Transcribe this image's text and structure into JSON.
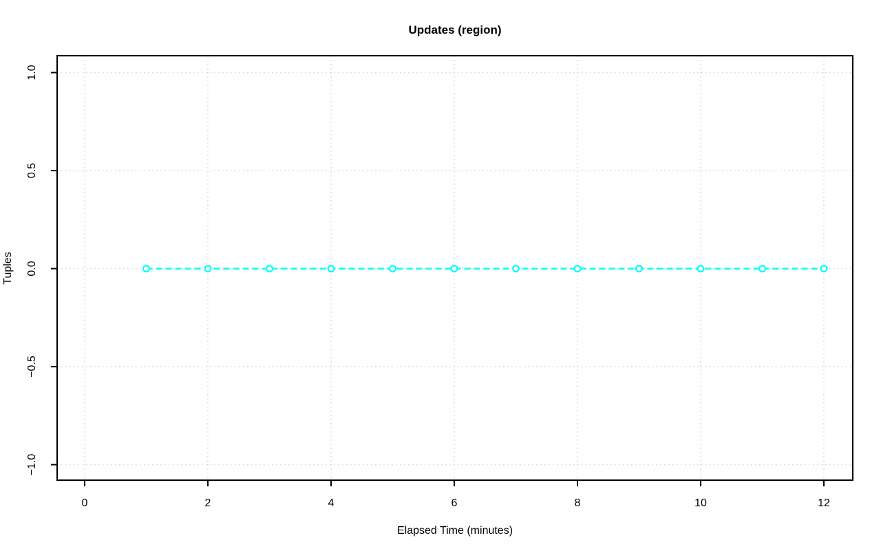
{
  "chart_data": {
    "type": "line",
    "title": "Updates (region)",
    "xlabel": "Elapsed Time (minutes)",
    "ylabel": "Tuples",
    "x": [
      1,
      2,
      3,
      4,
      5,
      6,
      7,
      8,
      9,
      10,
      11,
      12
    ],
    "series": [
      {
        "name": "Updates (region)",
        "values": [
          0,
          0,
          0,
          0,
          0,
          0,
          0,
          0,
          0,
          0,
          0,
          0
        ]
      }
    ],
    "xlim": [
      0,
      12
    ],
    "ylim": [
      -1.0,
      1.0
    ],
    "xticks": [
      0,
      2,
      4,
      6,
      8,
      10,
      12
    ],
    "xtick_labels": [
      "0",
      "2",
      "4",
      "6",
      "8",
      "10",
      "12"
    ],
    "yticks": [
      1.0,
      0.5,
      0.0,
      -0.5,
      -1.0
    ],
    "ytick_labels": [
      "1.0",
      "0.5",
      "0.0",
      "−0.5",
      "−1.0"
    ],
    "grid": true,
    "legend": null,
    "style": {
      "series_color": "#00ffff",
      "marker": "open-circle",
      "line_style": "dashed",
      "grid_style": "dotted",
      "grid_color": "#d7d7d7",
      "axis_color": "#000000",
      "background": "#ffffff"
    }
  }
}
